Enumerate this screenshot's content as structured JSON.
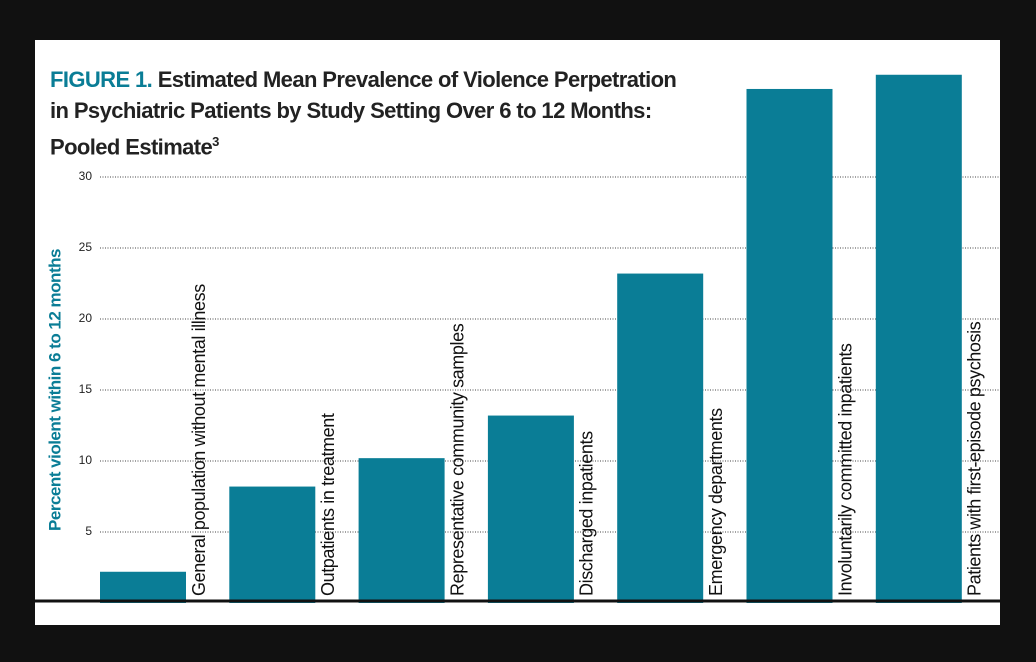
{
  "chart_data": {
    "type": "bar",
    "title_label": "FIGURE 1.",
    "title": "Estimated Mean Prevalence of Violence Perpetration in Psychiatric Patients by Study Setting Over 6 to 12 Months: Pooled Estimate",
    "title_superscript": "3",
    "y_label": "Percent violent within 6 to 12 months",
    "categories": [
      "General population without mental illness",
      "Outpatients in treatment",
      "Representative community samples",
      "Discharged inpatients",
      "Emergency departments",
      "Involuntarily committed inpatients",
      "Patients with first-episode psychosis"
    ],
    "values": [
      2.2,
      8.2,
      10.2,
      13.2,
      23.2,
      36.2,
      37.2
    ],
    "color": "#0a7d96",
    "ylim": [
      0,
      40
    ],
    "yticks": [
      5,
      10,
      15,
      20,
      25,
      30
    ],
    "grid": true
  }
}
